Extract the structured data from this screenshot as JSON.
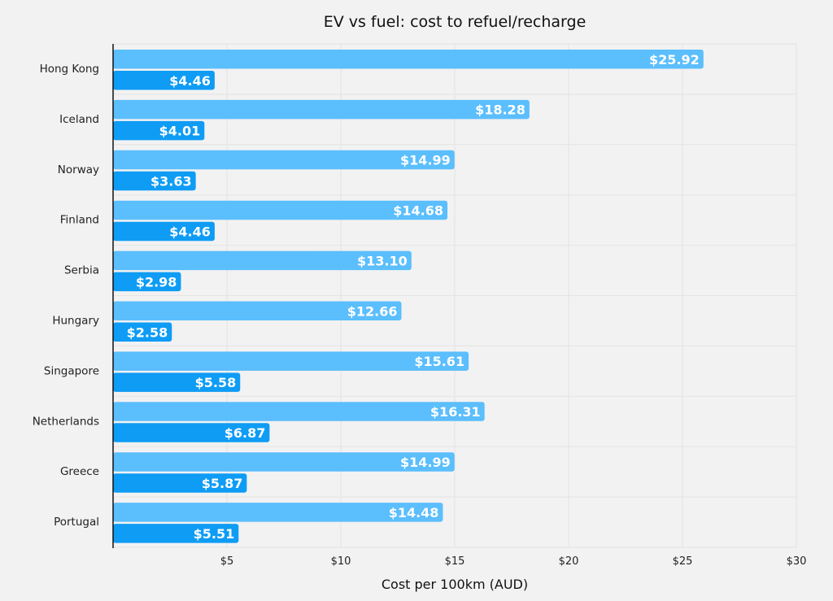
{
  "chart_data": {
    "type": "bar",
    "orientation": "horizontal",
    "title": "EV vs fuel: cost to refuel/recharge",
    "xlabel": "Cost per 100km (AUD)",
    "ylabel": "",
    "categories": [
      "Hong Kong",
      "Iceland",
      "Norway",
      "Finland",
      "Serbia",
      "Hungary",
      "Singapore",
      "Netherlands",
      "Greece",
      "Portugal"
    ],
    "series": [
      {
        "color": "#5bbefd",
        "values": [
          25.92,
          18.28,
          14.99,
          14.68,
          13.1,
          12.66,
          15.61,
          16.31,
          14.99,
          14.48
        ],
        "labels": [
          "$25.92",
          "$18.28",
          "$14.99",
          "$14.68",
          "$13.10",
          "$12.66",
          "$15.61",
          "$16.31",
          "$14.99",
          "$14.48"
        ]
      },
      {
        "color": "#0e9cf5",
        "values": [
          4.46,
          4.01,
          3.63,
          4.46,
          2.98,
          2.58,
          5.58,
          6.87,
          5.87,
          5.51
        ],
        "labels": [
          "$4.46",
          "$4.01",
          "$3.63",
          "$4.46",
          "$2.98",
          "$2.58",
          "$5.58",
          "$6.87",
          "$5.87",
          "$5.51"
        ]
      }
    ],
    "xlim": [
      0,
      30
    ],
    "xticks": [
      5,
      10,
      15,
      20,
      25,
      30
    ],
    "xtick_labels": [
      "$5",
      "$10",
      "$15",
      "$20",
      "$25",
      "$30"
    ],
    "grid": true,
    "legend": "none"
  }
}
